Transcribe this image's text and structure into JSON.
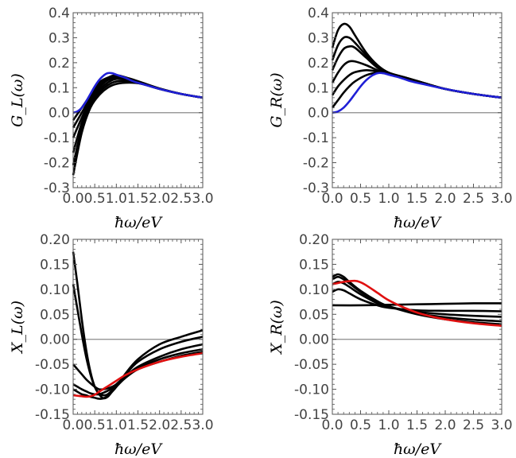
{
  "chart_data": [
    {
      "type": "line",
      "panel": "top-left",
      "xlabel": "ħω/eV",
      "ylabel": "G_L(ω)",
      "xlim": [
        0,
        3
      ],
      "ylim": [
        -0.3,
        0.4
      ],
      "xticks": [
        "0.0",
        "0.5",
        "1.0",
        "1.5",
        "2.0",
        "2.5",
        "3.0"
      ],
      "yticks": [
        "-0.3",
        "-0.2",
        "-0.1",
        "0.0",
        "0.1",
        "0.2",
        "0.3",
        "0.4"
      ],
      "colors": {
        "highlight": "#1f1fd6",
        "family": "#000000",
        "zero_line": "#8a8a8a"
      },
      "series": [
        {
          "color": "#000000",
          "x": [
            0,
            0.2,
            0.4,
            0.6,
            0.8,
            1.0,
            1.3,
            1.6,
            2.0,
            2.5,
            3.0
          ],
          "y": [
            -0.25,
            -0.08,
            0.02,
            0.07,
            0.1,
            0.115,
            0.12,
            0.115,
            0.095,
            0.075,
            0.06
          ]
        },
        {
          "color": "#000000",
          "x": [
            0,
            0.2,
            0.4,
            0.6,
            0.8,
            1.0,
            1.3,
            1.6,
            2.0,
            2.5,
            3.0
          ],
          "y": [
            -0.21,
            -0.06,
            0.03,
            0.08,
            0.11,
            0.125,
            0.125,
            0.115,
            0.095,
            0.075,
            0.06
          ]
        },
        {
          "color": "#000000",
          "x": [
            0,
            0.2,
            0.4,
            0.6,
            0.8,
            1.0,
            1.3,
            1.6,
            2.0,
            2.5,
            3.0
          ],
          "y": [
            -0.16,
            -0.04,
            0.04,
            0.09,
            0.12,
            0.135,
            0.13,
            0.118,
            0.096,
            0.075,
            0.06
          ]
        },
        {
          "color": "#000000",
          "x": [
            0,
            0.2,
            0.4,
            0.6,
            0.8,
            1.0,
            1.3,
            1.6,
            2.0,
            2.5,
            3.0
          ],
          "y": [
            -0.1,
            -0.02,
            0.05,
            0.1,
            0.13,
            0.14,
            0.132,
            0.118,
            0.096,
            0.075,
            0.06
          ]
        },
        {
          "color": "#000000",
          "x": [
            0,
            0.2,
            0.4,
            0.6,
            0.8,
            1.0,
            1.3,
            1.6,
            2.0,
            2.5,
            3.0
          ],
          "y": [
            -0.06,
            0.0,
            0.06,
            0.11,
            0.135,
            0.145,
            0.135,
            0.119,
            0.096,
            0.075,
            0.06
          ]
        },
        {
          "color": "#000000",
          "x": [
            0,
            0.2,
            0.4,
            0.6,
            0.8,
            1.0,
            1.3,
            1.6,
            2.0,
            2.5,
            3.0
          ],
          "y": [
            -0.03,
            0.02,
            0.07,
            0.12,
            0.14,
            0.15,
            0.137,
            0.12,
            0.097,
            0.075,
            0.06
          ]
        },
        {
          "color": "#1f1fd6",
          "x": [
            0,
            0.1,
            0.2,
            0.3,
            0.4,
            0.5,
            0.6,
            0.7,
            0.8,
            0.9,
            1.0,
            1.2,
            1.4,
            1.6,
            2.0,
            2.5,
            3.0
          ],
          "y": [
            0,
            0.005,
            0.02,
            0.045,
            0.075,
            0.105,
            0.13,
            0.148,
            0.158,
            0.158,
            0.152,
            0.14,
            0.125,
            0.115,
            0.095,
            0.075,
            0.06
          ]
        }
      ]
    },
    {
      "type": "line",
      "panel": "top-right",
      "xlabel": "ħω/eV",
      "ylabel": "G_R(ω)",
      "xlim": [
        0,
        3
      ],
      "ylim": [
        -0.3,
        0.4
      ],
      "xticks": [
        "0.0",
        "0.5",
        "1.0",
        "1.5",
        "2.0",
        "2.5",
        "3.0"
      ],
      "yticks": [
        "-0.3",
        "-0.2",
        "-0.1",
        "0.0",
        "0.1",
        "0.2",
        "0.3",
        "0.4"
      ],
      "colors": {
        "highlight": "#1f1fd6",
        "family": "#000000",
        "zero_line": "#8a8a8a"
      },
      "series": [
        {
          "color": "#000000",
          "x": [
            0,
            0.1,
            0.2,
            0.3,
            0.4,
            0.6,
            0.8,
            1.0,
            1.3,
            1.6,
            2.0,
            2.5,
            3.0
          ],
          "y": [
            0.26,
            0.33,
            0.355,
            0.345,
            0.31,
            0.24,
            0.19,
            0.16,
            0.14,
            0.12,
            0.095,
            0.075,
            0.06
          ]
        },
        {
          "color": "#000000",
          "x": [
            0,
            0.1,
            0.2,
            0.3,
            0.4,
            0.6,
            0.8,
            1.0,
            1.3,
            1.6,
            2.0,
            2.5,
            3.0
          ],
          "y": [
            0.21,
            0.27,
            0.3,
            0.3,
            0.28,
            0.23,
            0.185,
            0.16,
            0.14,
            0.12,
            0.095,
            0.075,
            0.06
          ]
        },
        {
          "color": "#000000",
          "x": [
            0,
            0.1,
            0.2,
            0.3,
            0.4,
            0.6,
            0.8,
            1.0,
            1.3,
            1.6,
            2.0,
            2.5,
            3.0
          ],
          "y": [
            0.17,
            0.22,
            0.255,
            0.265,
            0.26,
            0.22,
            0.18,
            0.158,
            0.14,
            0.12,
            0.095,
            0.075,
            0.06
          ]
        },
        {
          "color": "#000000",
          "x": [
            0,
            0.1,
            0.2,
            0.3,
            0.4,
            0.6,
            0.8,
            1.0,
            1.3,
            1.6,
            2.0,
            2.5,
            3.0
          ],
          "y": [
            0.12,
            0.16,
            0.19,
            0.205,
            0.205,
            0.19,
            0.17,
            0.155,
            0.14,
            0.12,
            0.095,
            0.075,
            0.06
          ]
        },
        {
          "color": "#000000",
          "x": [
            0,
            0.1,
            0.2,
            0.3,
            0.4,
            0.6,
            0.8,
            1.0,
            1.3,
            1.6,
            2.0,
            2.5,
            3.0
          ],
          "y": [
            0.07,
            0.105,
            0.13,
            0.15,
            0.162,
            0.17,
            0.165,
            0.155,
            0.14,
            0.12,
            0.095,
            0.075,
            0.06
          ]
        },
        {
          "color": "#000000",
          "x": [
            0,
            0.1,
            0.2,
            0.3,
            0.4,
            0.6,
            0.8,
            1.0,
            1.3,
            1.6,
            2.0,
            2.5,
            3.0
          ],
          "y": [
            0.02,
            0.05,
            0.08,
            0.105,
            0.125,
            0.15,
            0.16,
            0.155,
            0.14,
            0.12,
            0.095,
            0.075,
            0.06
          ]
        },
        {
          "color": "#1f1fd6",
          "x": [
            0,
            0.1,
            0.2,
            0.3,
            0.4,
            0.5,
            0.6,
            0.7,
            0.8,
            0.9,
            1.0,
            1.2,
            1.4,
            1.6,
            2.0,
            2.5,
            3.0
          ],
          "y": [
            0,
            0.005,
            0.02,
            0.045,
            0.075,
            0.105,
            0.13,
            0.148,
            0.158,
            0.158,
            0.152,
            0.14,
            0.125,
            0.115,
            0.095,
            0.075,
            0.06
          ]
        }
      ]
    },
    {
      "type": "line",
      "panel": "bottom-left",
      "xlabel": "ħω/eV",
      "ylabel": "X_L(ω)",
      "xlim": [
        0,
        3
      ],
      "ylim": [
        -0.15,
        0.2
      ],
      "xticks": [
        "0.0",
        "0.5",
        "1.0",
        "1.5",
        "2.0",
        "2.5",
        "3.0"
      ],
      "yticks": [
        "-0.15",
        "-0.10",
        "-0.05",
        "0.00",
        "0.05",
        "0.10",
        "0.15",
        "0.20"
      ],
      "colors": {
        "highlight": "#e01010",
        "family": "#000000",
        "zero_line": "#8a8a8a"
      },
      "series": [
        {
          "color": "#000000",
          "x": [
            0,
            0.1,
            0.2,
            0.3,
            0.4,
            0.5,
            0.6,
            0.7,
            0.8,
            0.9,
            1.0,
            1.2,
            1.5,
            2.0,
            2.5,
            3.0
          ],
          "y": [
            0.175,
            0.11,
            0.04,
            -0.02,
            -0.065,
            -0.095,
            -0.11,
            -0.118,
            -0.115,
            -0.105,
            -0.095,
            -0.07,
            -0.04,
            -0.01,
            0.005,
            0.018
          ]
        },
        {
          "color": "#000000",
          "x": [
            0,
            0.1,
            0.2,
            0.3,
            0.4,
            0.5,
            0.6,
            0.7,
            0.8,
            0.9,
            1.0,
            1.2,
            1.5,
            2.0,
            2.5,
            3.0
          ],
          "y": [
            0.11,
            0.06,
            0.01,
            -0.035,
            -0.07,
            -0.095,
            -0.108,
            -0.112,
            -0.11,
            -0.102,
            -0.094,
            -0.072,
            -0.045,
            -0.02,
            -0.005,
            0.005
          ]
        },
        {
          "color": "#000000",
          "x": [
            0,
            0.1,
            0.2,
            0.3,
            0.4,
            0.5,
            0.6,
            0.7,
            0.8,
            0.9,
            1.0,
            1.2,
            1.5,
            2.0,
            2.5,
            3.0
          ],
          "y": [
            -0.05,
            -0.06,
            -0.07,
            -0.08,
            -0.088,
            -0.095,
            -0.1,
            -0.1,
            -0.098,
            -0.095,
            -0.09,
            -0.075,
            -0.055,
            -0.035,
            -0.02,
            -0.01
          ]
        },
        {
          "color": "#000000",
          "x": [
            0,
            0.1,
            0.2,
            0.3,
            0.4,
            0.5,
            0.6,
            0.7,
            0.8,
            0.9,
            1.0,
            1.2,
            1.5,
            2.0,
            2.5,
            3.0
          ],
          "y": [
            -0.09,
            -0.095,
            -0.1,
            -0.104,
            -0.108,
            -0.11,
            -0.11,
            -0.107,
            -0.103,
            -0.098,
            -0.09,
            -0.075,
            -0.058,
            -0.04,
            -0.028,
            -0.02
          ]
        },
        {
          "color": "#000000",
          "x": [
            0,
            0.1,
            0.2,
            0.3,
            0.4,
            0.5,
            0.6,
            0.7,
            0.8,
            0.9,
            1.0,
            1.2,
            1.5,
            2.0,
            2.5,
            3.0
          ],
          "y": [
            -0.1,
            -0.105,
            -0.11,
            -0.112,
            -0.115,
            -0.117,
            -0.119,
            -0.118,
            -0.113,
            -0.105,
            -0.095,
            -0.078,
            -0.06,
            -0.045,
            -0.033,
            -0.025
          ]
        },
        {
          "color": "#e01010",
          "x": [
            0,
            0.1,
            0.2,
            0.3,
            0.4,
            0.5,
            0.6,
            0.8,
            1.0,
            1.2,
            1.5,
            2.0,
            2.5,
            3.0
          ],
          "y": [
            -0.112,
            -0.113,
            -0.114,
            -0.115,
            -0.114,
            -0.111,
            -0.105,
            -0.094,
            -0.083,
            -0.072,
            -0.06,
            -0.045,
            -0.035,
            -0.028
          ]
        }
      ]
    },
    {
      "type": "line",
      "panel": "bottom-right",
      "xlabel": "ħω/eV",
      "ylabel": "X_R(ω)",
      "xlim": [
        0,
        3
      ],
      "ylim": [
        -0.15,
        0.2
      ],
      "xticks": [
        "0.0",
        "0.5",
        "1.0",
        "1.5",
        "2.0",
        "2.5",
        "3.0"
      ],
      "yticks": [
        "-0.15",
        "-0.10",
        "-0.05",
        "0.00",
        "0.05",
        "0.10",
        "0.15",
        "0.20"
      ],
      "colors": {
        "highlight": "#e01010",
        "family": "#000000",
        "zero_line": "#8a8a8a"
      },
      "series": [
        {
          "color": "#000000",
          "x": [
            0,
            0.5,
            1.0,
            1.5,
            2.0,
            2.5,
            3.0
          ],
          "y": [
            0.068,
            0.068,
            0.069,
            0.07,
            0.071,
            0.072,
            0.072
          ]
        },
        {
          "color": "#000000",
          "x": [
            0,
            0.1,
            0.2,
            0.3,
            0.5,
            0.8,
            1.0,
            1.5,
            2.0,
            2.5,
            3.0
          ],
          "y": [
            0.095,
            0.1,
            0.098,
            0.092,
            0.08,
            0.068,
            0.063,
            0.058,
            0.057,
            0.057,
            0.056
          ]
        },
        {
          "color": "#000000",
          "x": [
            0,
            0.1,
            0.2,
            0.3,
            0.5,
            0.8,
            1.0,
            1.5,
            2.0,
            2.5,
            3.0
          ],
          "y": [
            0.11,
            0.115,
            0.112,
            0.105,
            0.09,
            0.072,
            0.065,
            0.055,
            0.05,
            0.047,
            0.045
          ]
        },
        {
          "color": "#000000",
          "x": [
            0,
            0.1,
            0.2,
            0.3,
            0.5,
            0.8,
            1.0,
            1.5,
            2.0,
            2.5,
            3.0
          ],
          "y": [
            0.12,
            0.125,
            0.12,
            0.112,
            0.095,
            0.075,
            0.066,
            0.052,
            0.044,
            0.039,
            0.036
          ]
        },
        {
          "color": "#000000",
          "x": [
            0,
            0.1,
            0.2,
            0.3,
            0.5,
            0.8,
            1.0,
            1.5,
            2.0,
            2.5,
            3.0
          ],
          "y": [
            0.125,
            0.13,
            0.125,
            0.115,
            0.097,
            0.076,
            0.066,
            0.05,
            0.04,
            0.034,
            0.03
          ]
        },
        {
          "color": "#e01010",
          "x": [
            0,
            0.2,
            0.4,
            0.5,
            0.6,
            0.8,
            1.0,
            1.3,
            1.6,
            2.0,
            2.5,
            3.0
          ],
          "y": [
            0.11,
            0.115,
            0.117,
            0.114,
            0.108,
            0.093,
            0.078,
            0.062,
            0.05,
            0.04,
            0.032,
            0.027
          ]
        }
      ]
    }
  ]
}
